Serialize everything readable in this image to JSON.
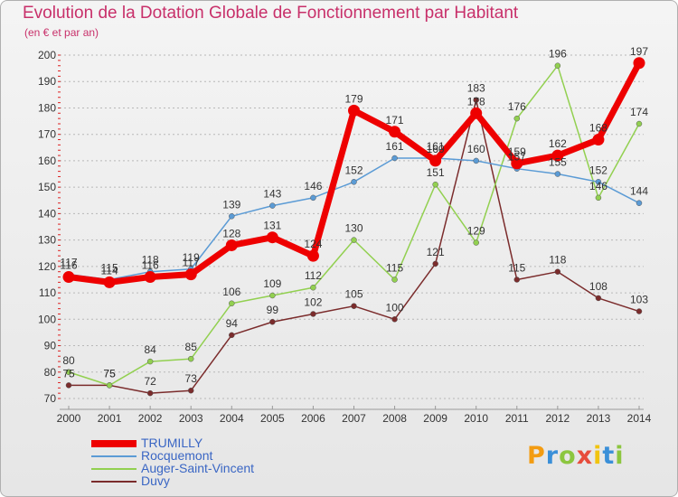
{
  "chart_data": {
    "type": "line",
    "title": "Evolution de la Dotation Globale de Fonctionnement par Habitant",
    "subtitle": "(en € et par an)",
    "x": [
      "2000",
      "2001",
      "2002",
      "2003",
      "2004",
      "2005",
      "2006",
      "2007",
      "2008",
      "2009",
      "2010",
      "2011",
      "2012",
      "2013",
      "2014"
    ],
    "ylim": [
      70,
      200
    ],
    "yticks": [
      70,
      80,
      90,
      100,
      110,
      120,
      130,
      140,
      150,
      160,
      170,
      180,
      190,
      200
    ],
    "grid": "horizontal-dashed",
    "legend_position": "bottom-left",
    "series": [
      {
        "name": "TRUMILLY",
        "color": "#ee0000",
        "values": [
          116,
          114,
          116,
          117,
          128,
          131,
          124,
          179,
          171,
          160,
          178,
          159,
          162,
          168,
          197
        ],
        "labels": [
          "116",
          "114",
          "116",
          "117",
          "128",
          "131",
          "124",
          "179",
          "171",
          "160",
          "178",
          "159",
          "162",
          "168",
          "197"
        ]
      },
      {
        "name": "Rocquemont",
        "color": "#5b9bd5",
        "values": [
          117,
          115,
          118,
          119,
          139,
          143,
          146,
          152,
          161,
          161,
          160,
          157,
          155,
          152,
          144
        ],
        "labels": [
          "117",
          "115",
          "118",
          "119",
          "139",
          "143",
          "146",
          "152",
          "161",
          "161",
          "160",
          "157",
          "155",
          "152",
          "144"
        ]
      },
      {
        "name": "Auger-Saint-Vincent",
        "color": "#92d050",
        "values": [
          80,
          75,
          84,
          85,
          106,
          109,
          112,
          130,
          115,
          151,
          129,
          176,
          196,
          146,
          174
        ],
        "labels": [
          "80",
          "75",
          "84",
          "85",
          "106",
          "109",
          "112",
          "130",
          "115",
          "151",
          "129",
          "176",
          "196",
          "146",
          "174"
        ]
      },
      {
        "name": "Duvy",
        "color": "#7b2c2c",
        "values": [
          75,
          75,
          72,
          73,
          94,
          99,
          102,
          105,
          100,
          121,
          183,
          115,
          118,
          108,
          103
        ],
        "labels": [
          "75",
          "75",
          "72",
          "73",
          "94",
          "99",
          "102",
          "105",
          "100",
          "121",
          "183",
          "115",
          "118",
          "108",
          "103"
        ]
      }
    ]
  },
  "logo": {
    "text": "Proxiti"
  }
}
